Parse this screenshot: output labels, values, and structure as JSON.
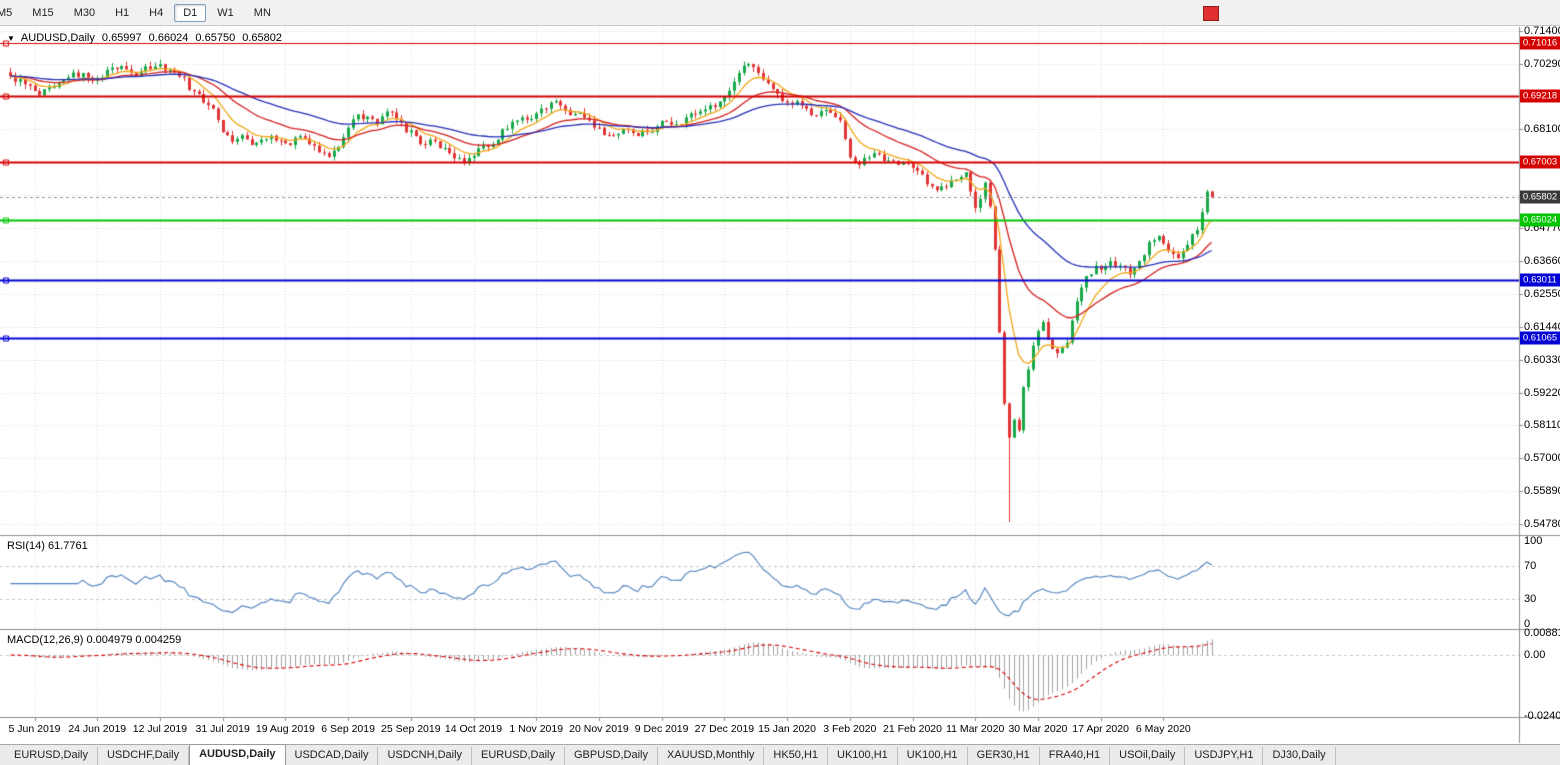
{
  "toolbar": {
    "timeframes": [
      {
        "label": "M5",
        "selected": false
      },
      {
        "label": "M15",
        "selected": false
      },
      {
        "label": "M30",
        "selected": false
      },
      {
        "label": "H1",
        "selected": false
      },
      {
        "label": "H4",
        "selected": false
      },
      {
        "label": "D1",
        "selected": true
      },
      {
        "label": "W1",
        "selected": false
      },
      {
        "label": "MN",
        "selected": false
      }
    ],
    "red_marker_color": "#e23030"
  },
  "chart_header": {
    "dropdown_icon": "▼",
    "symbol": "AUDUSD,Daily",
    "open": "0.65997",
    "high": "0.66024",
    "low": "0.65750",
    "close": "0.65802"
  },
  "price_axis": {
    "ticks": [
      0.714,
      0.7029,
      0.681,
      0.6477,
      0.6366,
      0.6255,
      0.6144,
      0.6033,
      0.5922,
      0.5811,
      0.57,
      0.5589,
      0.5478
    ],
    "grid": [
      0.714,
      0.7029,
      0.6918,
      0.681,
      0.6699,
      0.6588,
      0.6477,
      0.6366,
      0.6255,
      0.6144,
      0.6033,
      0.5922,
      0.5811,
      0.57,
      0.5589,
      0.5478
    ],
    "current_price": 0.65802,
    "current_badge_color": "#3a3a3a"
  },
  "price_levels": [
    {
      "price": 0.71016,
      "color": "#d40000",
      "width": 1
    },
    {
      "price": 0.69218,
      "color": "#d40000",
      "width": 2
    },
    {
      "price": 0.67003,
      "color": "#d40000",
      "width": 2
    },
    {
      "price": 0.65024,
      "color": "#00c400",
      "width": 2
    },
    {
      "price": 0.63011,
      "color": "#0000d4",
      "width": 2
    },
    {
      "price": 0.61065,
      "color": "#0000d4",
      "width": 2
    }
  ],
  "rsi": {
    "label_text": "RSI(14) 61.7761",
    "period": 14,
    "axis": [
      100,
      70,
      30,
      0
    ],
    "guide_levels": [
      70,
      30
    ],
    "line_color": "#4f81bd"
  },
  "macd": {
    "label_text": "MACD(12,26,9) 0.004979 0.004259",
    "fast": 12,
    "slow": 26,
    "signal": 9,
    "axis": [
      {
        "label": "0.008815",
        "value": 0.008815
      },
      {
        "label": "0.00",
        "value": 0
      },
      {
        "label": "-0.02408",
        "value": -0.02408
      }
    ],
    "hist_color": "#a0a0a0",
    "signal_color": "#d40000",
    "scale_max": 0.0095,
    "scale_min": -0.0245
  },
  "time_axis": {
    "ticks": [
      {
        "label": "5 Jun 2019",
        "candle": 5
      },
      {
        "label": "24 Jun 2019",
        "candle": 18
      },
      {
        "label": "12 Jul 2019",
        "candle": 31
      },
      {
        "label": "31 Jul 2019",
        "candle": 44
      },
      {
        "label": "19 Aug 2019",
        "candle": 57
      },
      {
        "label": "6 Sep 2019",
        "candle": 70
      },
      {
        "label": "25 Sep 2019",
        "candle": 83
      },
      {
        "label": "14 Oct 2019",
        "candle": 96
      },
      {
        "label": "1 Nov 2019",
        "candle": 109
      },
      {
        "label": "20 Nov 2019",
        "candle": 122
      },
      {
        "label": "9 Dec 2019",
        "candle": 135
      },
      {
        "label": "27 Dec 2019",
        "candle": 148
      },
      {
        "label": "15 Jan 2020",
        "candle": 161
      },
      {
        "label": "3 Feb 2020",
        "candle": 174
      },
      {
        "label": "21 Feb 2020",
        "candle": 187
      },
      {
        "label": "11 Mar 2020",
        "candle": 200
      },
      {
        "label": "30 Mar 2020",
        "candle": 213
      },
      {
        "label": "17 Apr 2020",
        "candle": 226
      },
      {
        "label": "6 May 2020",
        "candle": 239
      }
    ]
  },
  "tabbar": {
    "items": [
      "EURUSD,Daily",
      "USDCHF,Daily",
      "AUDUSD,Daily",
      "USDCAD,Daily",
      "USDCNH,Daily",
      "EURUSD,Daily",
      "GBPUSD,Daily",
      "XAUUSD,Monthly",
      "HK50,H1",
      "UK100,H1",
      "UK100,H1",
      "GER30,H1",
      "FRA40,H1",
      "USOil,Daily",
      "USDJPY,H1",
      "DJ30,Daily"
    ],
    "selected_index": 2
  },
  "chart_data": {
    "type": "candlestick",
    "symbol": "AUDUSD",
    "timeframe": "Daily",
    "count": 250,
    "up_color": "#18a848",
    "down_color": "#e03535",
    "noise": 0.0026,
    "wick_extra": 0.0017,
    "anchors": [
      [
        0,
        0.699
      ],
      [
        3,
        0.6962
      ],
      [
        6,
        0.6925
      ],
      [
        9,
        0.6952
      ],
      [
        12,
        0.6985
      ],
      [
        15,
        0.7
      ],
      [
        18,
        0.6978
      ],
      [
        21,
        0.7018
      ],
      [
        24,
        0.7012
      ],
      [
        26,
        0.699
      ],
      [
        28,
        0.7022
      ],
      [
        31,
        0.703
      ],
      [
        33,
        0.701
      ],
      [
        35,
        0.6988
      ],
      [
        38,
        0.6938
      ],
      [
        40,
        0.69
      ],
      [
        42,
        0.688
      ],
      [
        44,
        0.68
      ],
      [
        46,
        0.6768
      ],
      [
        48,
        0.679
      ],
      [
        50,
        0.6757
      ],
      [
        52,
        0.6775
      ],
      [
        54,
        0.6788
      ],
      [
        56,
        0.6772
      ],
      [
        58,
        0.6757
      ],
      [
        60,
        0.6787
      ],
      [
        62,
        0.676
      ],
      [
        64,
        0.6732
      ],
      [
        66,
        0.6717
      ],
      [
        68,
        0.675
      ],
      [
        70,
        0.6815
      ],
      [
        72,
        0.686
      ],
      [
        74,
        0.6853
      ],
      [
        76,
        0.6827
      ],
      [
        78,
        0.687
      ],
      [
        80,
        0.6845
      ],
      [
        82,
        0.68
      ],
      [
        84,
        0.6787
      ],
      [
        86,
        0.6757
      ],
      [
        88,
        0.677
      ],
      [
        90,
        0.6747
      ],
      [
        92,
        0.6712
      ],
      [
        94,
        0.67
      ],
      [
        96,
        0.672
      ],
      [
        98,
        0.6755
      ],
      [
        100,
        0.676
      ],
      [
        102,
        0.681
      ],
      [
        104,
        0.6835
      ],
      [
        106,
        0.685
      ],
      [
        108,
        0.6845
      ],
      [
        110,
        0.688
      ],
      [
        112,
        0.69
      ],
      [
        114,
        0.689
      ],
      [
        116,
        0.6857
      ],
      [
        118,
        0.6865
      ],
      [
        120,
        0.684
      ],
      [
        122,
        0.6815
      ],
      [
        124,
        0.679
      ],
      [
        126,
        0.6795
      ],
      [
        128,
        0.681
      ],
      [
        130,
        0.6787
      ],
      [
        132,
        0.68
      ],
      [
        134,
        0.682
      ],
      [
        136,
        0.6835
      ],
      [
        138,
        0.6827
      ],
      [
        140,
        0.685
      ],
      [
        142,
        0.6862
      ],
      [
        144,
        0.6877
      ],
      [
        146,
        0.6885
      ],
      [
        148,
        0.692
      ],
      [
        150,
        0.697
      ],
      [
        151,
        0.7
      ],
      [
        152,
        0.7025
      ],
      [
        153,
        0.703
      ],
      [
        155,
        0.7
      ],
      [
        157,
        0.6965
      ],
      [
        159,
        0.693
      ],
      [
        161,
        0.69
      ],
      [
        163,
        0.6905
      ],
      [
        165,
        0.688
      ],
      [
        167,
        0.6855
      ],
      [
        169,
        0.6875
      ],
      [
        170,
        0.6865
      ],
      [
        172,
        0.684
      ],
      [
        174,
        0.6715
      ],
      [
        176,
        0.669
      ],
      [
        178,
        0.6715
      ],
      [
        180,
        0.6725
      ],
      [
        182,
        0.6705
      ],
      [
        184,
        0.669
      ],
      [
        186,
        0.6695
      ],
      [
        188,
        0.667
      ],
      [
        190,
        0.6625
      ],
      [
        192,
        0.6605
      ],
      [
        194,
        0.6615
      ],
      [
        196,
        0.664
      ],
      [
        198,
        0.6665
      ],
      [
        199,
        0.66
      ],
      [
        200,
        0.6545
      ],
      [
        201,
        0.6575
      ],
      [
        202,
        0.663
      ],
      [
        203,
        0.655
      ],
      [
        204,
        0.6405
      ],
      [
        205,
        0.6125
      ],
      [
        206,
        0.5885
      ],
      [
        207,
        0.577
      ],
      [
        208,
        0.583
      ],
      [
        209,
        0.5795
      ],
      [
        210,
        0.594
      ],
      [
        211,
        0.6
      ],
      [
        212,
        0.608
      ],
      [
        213,
        0.613
      ],
      [
        214,
        0.616
      ],
      [
        215,
        0.61
      ],
      [
        217,
        0.6055
      ],
      [
        219,
        0.609
      ],
      [
        220,
        0.6165
      ],
      [
        221,
        0.623
      ],
      [
        223,
        0.6315
      ],
      [
        225,
        0.635
      ],
      [
        226,
        0.6335
      ],
      [
        228,
        0.6365
      ],
      [
        230,
        0.635
      ],
      [
        232,
        0.632
      ],
      [
        234,
        0.6365
      ],
      [
        236,
        0.643
      ],
      [
        238,
        0.645
      ],
      [
        240,
        0.64
      ],
      [
        242,
        0.6375
      ],
      [
        244,
        0.642
      ],
      [
        246,
        0.647
      ],
      [
        247,
        0.653
      ],
      [
        248,
        0.66
      ],
      [
        249,
        0.65802
      ]
    ],
    "wick_lows": {
      "207": 0.5485
    },
    "moving_averages": [
      {
        "type": "ema",
        "period": 8,
        "color": "#f0a818"
      },
      {
        "type": "ema",
        "period": 21,
        "color": "#d42020"
      },
      {
        "type": "ema",
        "period": 45,
        "color": "#2430b8"
      }
    ]
  }
}
